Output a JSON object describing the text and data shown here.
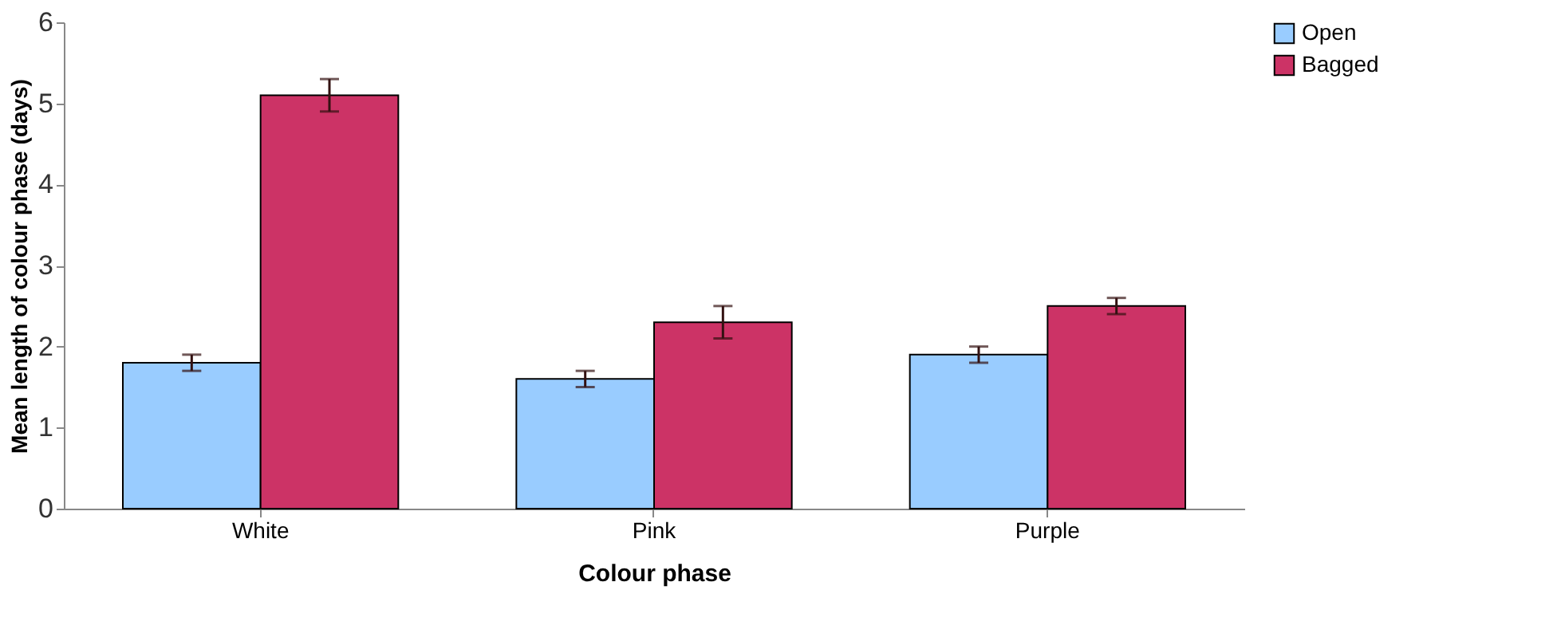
{
  "chart_data": {
    "type": "bar",
    "xlabel": "Colour phase",
    "ylabel": "Mean length of colour phase (days)",
    "categories": [
      "White",
      "Pink",
      "Purple"
    ],
    "series": [
      {
        "name": "Open",
        "color": "#99ccff",
        "values": [
          1.8,
          1.6,
          1.9
        ],
        "errors": [
          0.1,
          0.1,
          0.1
        ]
      },
      {
        "name": "Bagged",
        "color": "#cc3366",
        "values": [
          5.1,
          2.3,
          2.5
        ],
        "errors": [
          0.2,
          0.2,
          0.1
        ]
      }
    ],
    "ylim": [
      0,
      6
    ],
    "yticks": [
      0,
      1,
      2,
      3,
      4,
      5,
      6
    ],
    "grid": false,
    "legend": "right"
  }
}
